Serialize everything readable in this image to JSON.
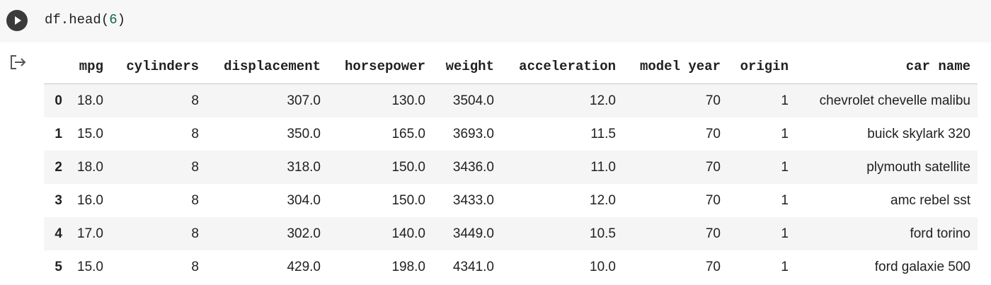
{
  "cell": {
    "code_fn": "df.head(",
    "code_arg": "6",
    "code_close": ")"
  },
  "icons": {
    "run": "play-icon",
    "output": "output-arrow-icon"
  },
  "colors": {
    "cell_background": "#f7f7f7",
    "run_button": "#3b3b3b",
    "number_literal": "#116644",
    "row_stripe": "#f5f5f5"
  },
  "table": {
    "columns": [
      "",
      "mpg",
      "cylinders",
      "displacement",
      "horsepower",
      "weight",
      "acceleration",
      "model year",
      "origin",
      "car name"
    ],
    "rows": [
      [
        "0",
        "18.0",
        "8",
        "307.0",
        "130.0",
        "3504.0",
        "12.0",
        "70",
        "1",
        "chevrolet chevelle malibu"
      ],
      [
        "1",
        "15.0",
        "8",
        "350.0",
        "165.0",
        "3693.0",
        "11.5",
        "70",
        "1",
        "buick skylark 320"
      ],
      [
        "2",
        "18.0",
        "8",
        "318.0",
        "150.0",
        "3436.0",
        "11.0",
        "70",
        "1",
        "plymouth satellite"
      ],
      [
        "3",
        "16.0",
        "8",
        "304.0",
        "150.0",
        "3433.0",
        "12.0",
        "70",
        "1",
        "amc rebel sst"
      ],
      [
        "4",
        "17.0",
        "8",
        "302.0",
        "140.0",
        "3449.0",
        "10.5",
        "70",
        "1",
        "ford torino"
      ],
      [
        "5",
        "15.0",
        "8",
        "429.0",
        "198.0",
        "4341.0",
        "10.0",
        "70",
        "1",
        "ford galaxie 500"
      ]
    ]
  }
}
